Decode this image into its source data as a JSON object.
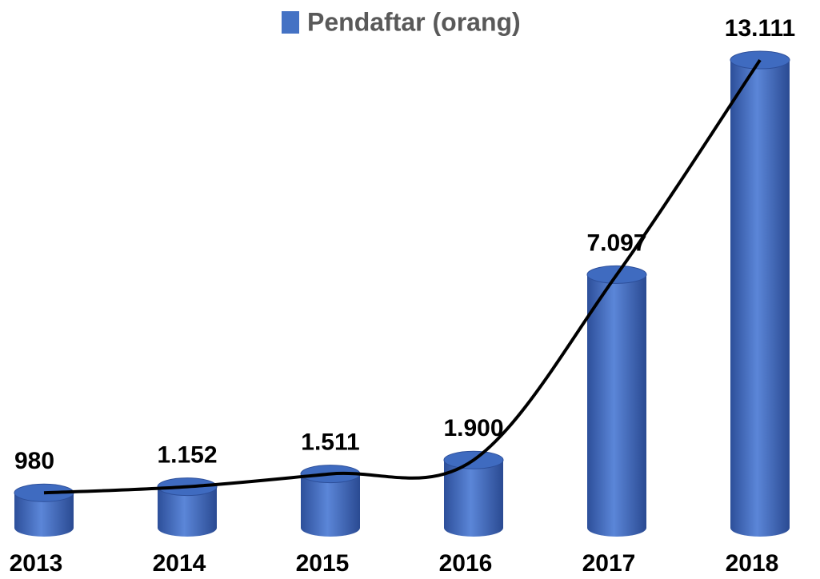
{
  "chart_data": {
    "type": "bar",
    "series": [
      {
        "name": "Pendaftar (orang)",
        "color": "#4472c4",
        "values": [
          980,
          1152,
          1511,
          1900,
          7097,
          13111
        ],
        "value_labels": [
          "980",
          "1.152",
          "1.511",
          "1.900",
          "7.097",
          "13.111"
        ]
      }
    ],
    "categories": [
      "2013",
      "2014",
      "2015",
      "2016",
      "2017",
      "2018"
    ],
    "ylim": [
      0,
      14000
    ],
    "trend_line_color": "#000000"
  }
}
